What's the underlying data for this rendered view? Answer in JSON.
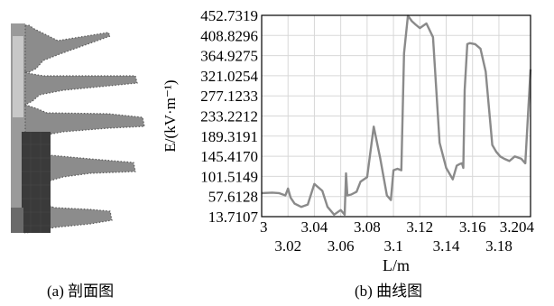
{
  "captions": {
    "a": "(a) 剖面图",
    "b": "(b) 曲线图"
  },
  "colors": {
    "curve": "#8a8a8a",
    "grid": "#d8d8d8",
    "axis": "#000000",
    "insulator_fill": "#8c8c8c",
    "insulator_dark": "#3a3a3a",
    "mesh_points": "#e0e0e0"
  },
  "chart_data": {
    "type": "line",
    "title": "",
    "xlabel": "L/m",
    "ylabel": "E/(kV·m⁻¹)",
    "xlim": [
      3.0,
      3.204
    ],
    "ylim": [
      13.7107,
      452.7319
    ],
    "grid": true,
    "x_ticks_row1": [
      "3",
      "3.04",
      "3.08",
      "3.12",
      "3.16",
      "3.204"
    ],
    "x_ticks_row1_values": [
      3.0,
      3.04,
      3.08,
      3.12,
      3.16,
      3.204
    ],
    "x_ticks_row2": [
      "3.02",
      "3.06",
      "3.1",
      "3.14",
      "3.18"
    ],
    "x_ticks_row2_values": [
      3.02,
      3.06,
      3.1,
      3.14,
      3.18
    ],
    "y_ticks": [
      "452.7319",
      "408.8296",
      "364.9275",
      "321.0254",
      "277.1233",
      "233.2212",
      "189.3191",
      "145.4170",
      "101.5149",
      "57.6128",
      "13.7107"
    ],
    "y_ticks_values": [
      452.7319,
      408.8296,
      364.9275,
      321.0254,
      277.1233,
      233.2212,
      189.3191,
      145.417,
      101.5149,
      57.6128,
      13.7107
    ],
    "series": [
      {
        "x": [
          3.0,
          3.008,
          3.013,
          3.018,
          3.02,
          3.022,
          3.025,
          3.03,
          3.035,
          3.04,
          3.046,
          3.05,
          3.055,
          3.06,
          3.063,
          3.064,
          3.065,
          3.068,
          3.072,
          3.075,
          3.08,
          3.085,
          3.09,
          3.095,
          3.098,
          3.1,
          3.103,
          3.106,
          3.108,
          3.111,
          3.114,
          3.117,
          3.12,
          3.125,
          3.13,
          3.135,
          3.14,
          3.145,
          3.148,
          3.15,
          3.152,
          3.153,
          3.154,
          3.156,
          3.158,
          3.162,
          3.166,
          3.17,
          3.175,
          3.178,
          3.181,
          3.184,
          3.188,
          3.192,
          3.197,
          3.2,
          3.204
        ],
        "y": [
          65,
          66,
          65,
          60,
          75,
          55,
          42,
          35,
          40,
          85,
          70,
          35,
          18,
          28,
          18,
          108,
          60,
          62,
          68,
          90,
          100,
          210,
          140,
          60,
          50,
          115,
          118,
          115,
          370,
          452,
          440,
          432,
          425,
          435,
          405,
          175,
          120,
          95,
          125,
          128,
          130,
          120,
          290,
          390,
          392,
          390,
          380,
          330,
          170,
          155,
          145,
          140,
          135,
          145,
          140,
          130,
          335
        ]
      }
    ]
  },
  "insulator": {
    "sheds": 5
  }
}
